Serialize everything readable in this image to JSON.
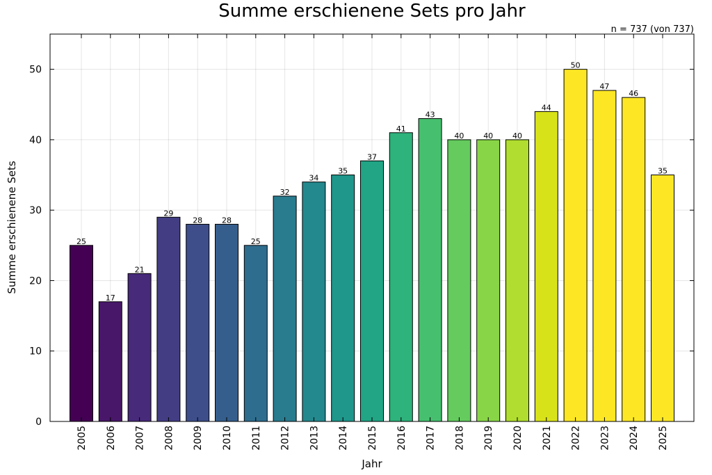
{
  "chart_data": {
    "type": "bar",
    "title": "Summe erschienene Sets pro Jahr",
    "annotation": "n = 737 (von 737)",
    "xlabel": "Jahr",
    "ylabel": "Summe erschienene Sets",
    "categories": [
      "2005",
      "2006",
      "2007",
      "2008",
      "2009",
      "2010",
      "2011",
      "2012",
      "2013",
      "2014",
      "2015",
      "2016",
      "2017",
      "2018",
      "2019",
      "2020",
      "2021",
      "2022",
      "2023",
      "2024",
      "2025"
    ],
    "values": [
      25,
      17,
      21,
      29,
      28,
      28,
      25,
      32,
      34,
      35,
      37,
      41,
      43,
      40,
      40,
      40,
      44,
      50,
      47,
      46,
      35
    ],
    "colors": [
      "#440154",
      "#481769",
      "#472a7a",
      "#433d84",
      "#3d4e8a",
      "#355e8d",
      "#2e6d8e",
      "#297b8e",
      "#23898e",
      "#1f978b",
      "#21a585",
      "#2eb37c",
      "#46c06f",
      "#65cb5e",
      "#89d548",
      "#b0dd2f",
      "#d8e219",
      "#fde725",
      "#fde725",
      "#fde725",
      "#fde725"
    ],
    "yticks": [
      0,
      10,
      20,
      30,
      40,
      50
    ],
    "ylim": [
      0,
      55
    ],
    "grid": true,
    "legend": "none"
  }
}
